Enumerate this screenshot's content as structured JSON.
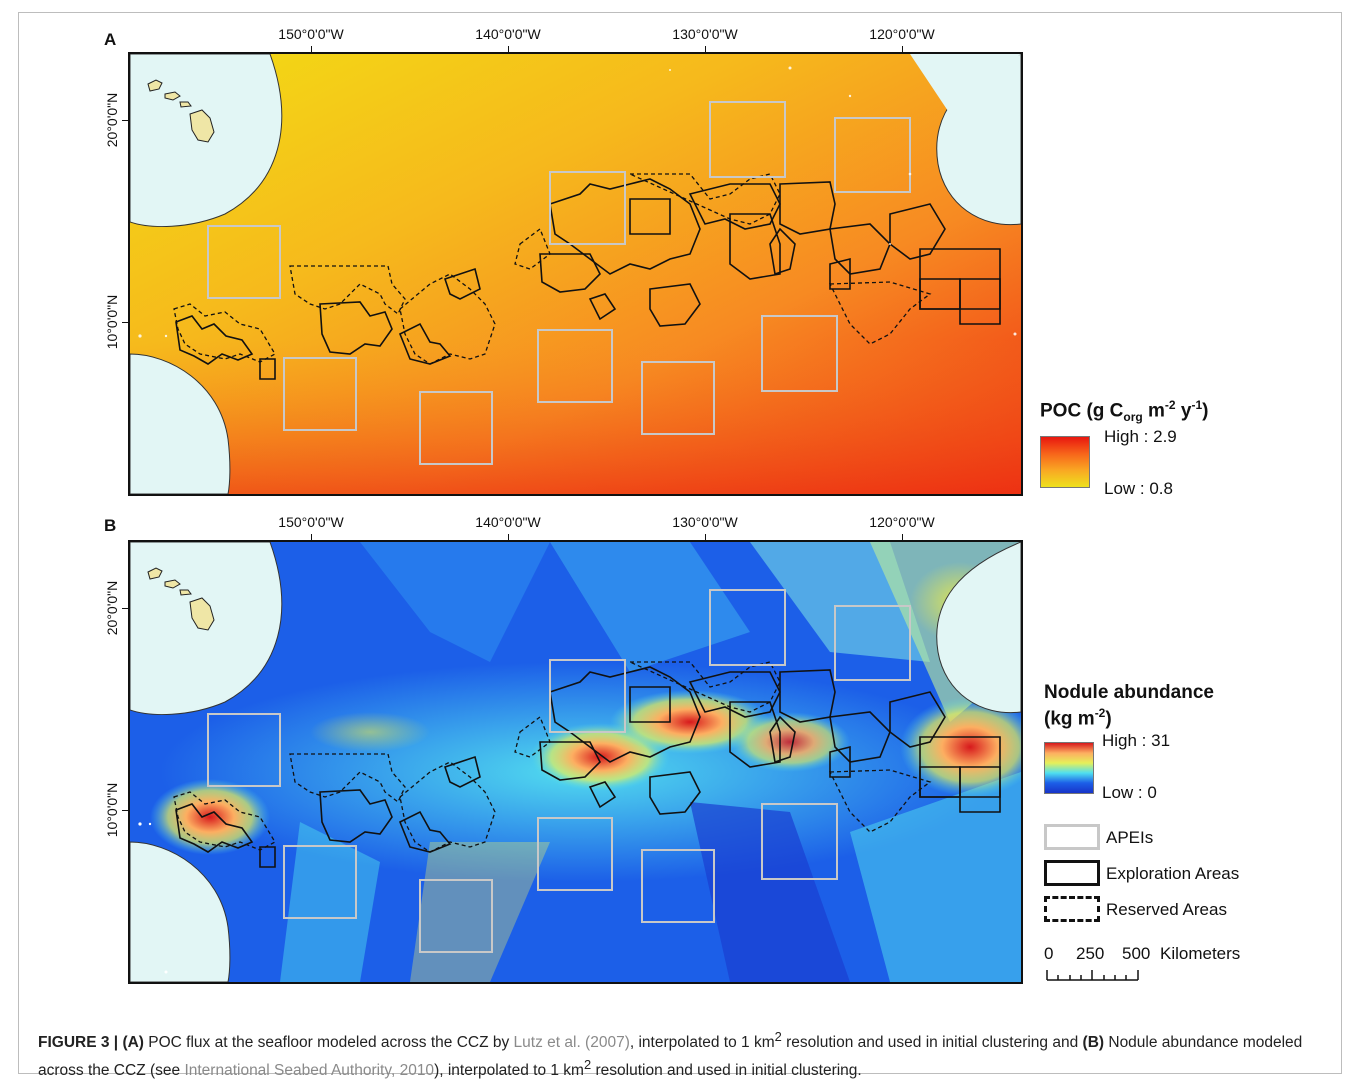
{
  "panels": {
    "a": {
      "letter": "A"
    },
    "b": {
      "letter": "B"
    }
  },
  "lon_labels": [
    "150°0'0\"W",
    "140°0'0\"W",
    "130°0'0\"W",
    "120°0'0\"W"
  ],
  "lat_labels": [
    "20°0'0\"N",
    "10°0'0\"N"
  ],
  "legend_a": {
    "title_pre": "POC (g C",
    "title_sub": "org",
    "title_mid": " m",
    "title_sup1": "-2",
    "title_mid2": " y",
    "title_sup2": "-1",
    "title_post": ")",
    "high": "High : 2.9",
    "low": "Low : 0.8",
    "ramp_colors": [
      "#e8170f",
      "#f7641a",
      "#f9a823",
      "#eee11d"
    ]
  },
  "legend_b": {
    "title_line1": "Nodule abundance",
    "title_line2_pre": "(kg m",
    "title_line2_sup": "-2",
    "title_line2_post": ")",
    "high": "High : 31",
    "low": "Low : 0",
    "ramp_colors": [
      "#d7191c",
      "#fdae61",
      "#e6f05a",
      "#4fe0f0",
      "#1c5fe8",
      "#1834c8"
    ]
  },
  "symbols": {
    "apei": "APEIs",
    "exploration": "Exploration Areas",
    "reserved": "Reserved Areas",
    "apei_color": "#c8c8c8"
  },
  "scalebar": {
    "ticks": [
      "0",
      "250",
      "500"
    ],
    "unit": "Kilometers"
  },
  "caption": {
    "fig": "FIGURE 3 | ",
    "a_tag": "(A)",
    "a_text1": " POC flux at the seafloor modeled across the CCZ by ",
    "a_cite": "Lutz et al. (2007)",
    "a_text2": ", interpolated to 1 km",
    "a_sup": "2",
    "a_text3": " resolution and used in initial clustering and ",
    "b_tag": "(B)",
    "b_text1": " Nodule abundance modeled across the CCZ (see ",
    "b_cite": "International Seabed Authority, 2010",
    "b_text2": "), interpolated to 1 km",
    "b_sup": "2",
    "b_text3": " resolution and used in initial clustering."
  },
  "colors": {
    "land_disk": "#e2f6f5",
    "island": "#efe6a6",
    "exploration_line": "#111111"
  }
}
